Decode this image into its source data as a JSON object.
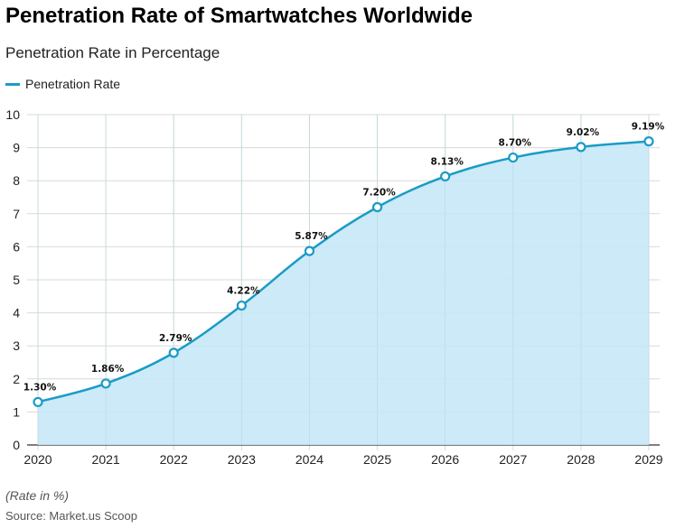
{
  "title": "Penetration Rate of Smartwatches Worldwide",
  "subtitle": "Penetration Rate in Percentage",
  "footnote": "(Rate in %)",
  "source": "Source: Market.us Scoop",
  "colors": {
    "line": "#1a9bc7",
    "fill": "#c6e8f6",
    "grid": "#d9d9d9",
    "axis": "#333333"
  },
  "chart_data": {
    "type": "area",
    "x": [
      "2020",
      "2021",
      "2022",
      "2023",
      "2024",
      "2025",
      "2026",
      "2027",
      "2028",
      "2029"
    ],
    "series": [
      {
        "name": "Penetration Rate",
        "values": [
          1.3,
          1.86,
          2.79,
          4.22,
          5.87,
          7.2,
          8.13,
          8.7,
          9.02,
          9.19
        ],
        "labels": [
          "1.30%",
          "1.86%",
          "2.79%",
          "4.22%",
          "5.87%",
          "7.20%",
          "8.13%",
          "8.70%",
          "9.02%",
          "9.19%"
        ]
      }
    ],
    "ylim": [
      0,
      10
    ],
    "yticks": [
      0,
      1,
      2,
      3,
      4,
      5,
      6,
      7,
      8,
      9,
      10
    ],
    "grid": true,
    "legend": "top-left"
  }
}
